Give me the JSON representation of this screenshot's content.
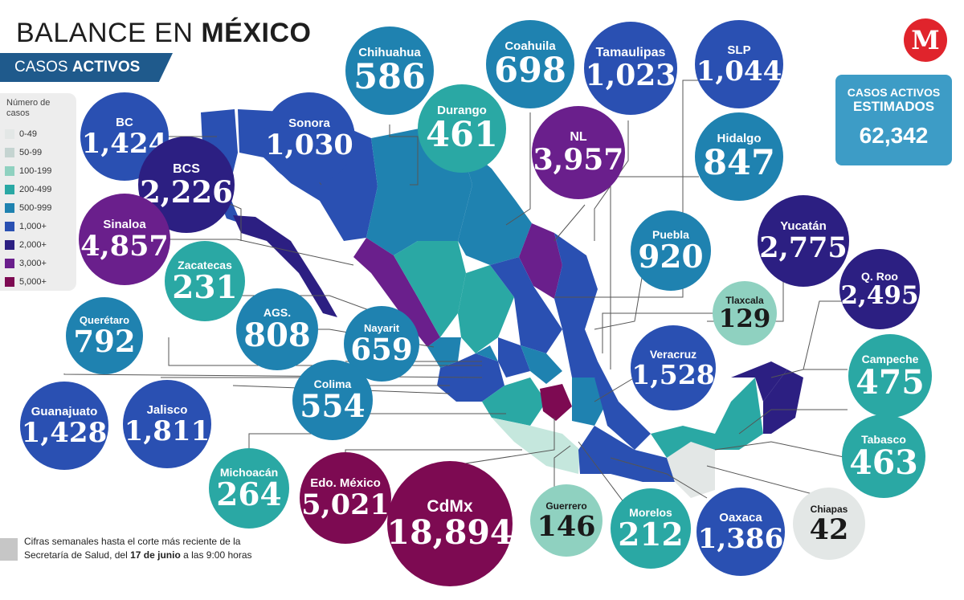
{
  "header": {
    "title_a": "BALANCE EN ",
    "title_b": "MÉXICO",
    "subtitle_a": "CASOS ",
    "subtitle_b": "ACTIVOS"
  },
  "legend": {
    "title": "Número de casos",
    "items": [
      {
        "label": "0-49",
        "color": "#e3e7e6"
      },
      {
        "label": "50-99",
        "color": "#c5d4d1"
      },
      {
        "label": "100-199",
        "color": "#8fd1c0"
      },
      {
        "label": "200-499",
        "color": "#2aa8a4"
      },
      {
        "label": "500-999",
        "color": "#1f82b0"
      },
      {
        "label": "1,000+",
        "color": "#2a50b2"
      },
      {
        "label": "2,000+",
        "color": "#2c1f82"
      },
      {
        "label": "3,000+",
        "color": "#6a1f8c"
      },
      {
        "label": "5,000+",
        "color": "#7d0a52"
      }
    ]
  },
  "total": {
    "line1": "CASOS ACTIVOS",
    "line2": "ESTIMADOS",
    "value": "62,342"
  },
  "logo": {
    "letter": "M",
    "color": "#e0242c"
  },
  "note": {
    "a": "Cifras semanales hasta el corte más reciente de la Secretaría de Salud, del ",
    "b": "17 de junio",
    "c": " a las 9:00 horas"
  },
  "states": [
    {
      "name": "BC",
      "value": "1,424",
      "color": "#2a50b2"
    },
    {
      "name": "Sonora",
      "value": "1,030",
      "color": "#2a50b2"
    },
    {
      "name": "Chihuahua",
      "value": "586",
      "color": "#1f82b0"
    },
    {
      "name": "Coahuila",
      "value": "698",
      "color": "#1f82b0"
    },
    {
      "name": "Tamaulipas",
      "value": "1,023",
      "color": "#2a50b2"
    },
    {
      "name": "SLP",
      "value": "1,044",
      "color": "#2a50b2"
    },
    {
      "name": "Durango",
      "value": "461",
      "color": "#2aa8a4"
    },
    {
      "name": "NL",
      "value": "3,957",
      "color": "#6a1f8c"
    },
    {
      "name": "BCS",
      "value": "2,226",
      "color": "#2c1f82"
    },
    {
      "name": "Hidalgo",
      "value": "847",
      "color": "#1f82b0"
    },
    {
      "name": "Sinaloa",
      "value": "4,857",
      "color": "#6a1f8c"
    },
    {
      "name": "Zacatecas",
      "value": "231",
      "color": "#2aa8a4"
    },
    {
      "name": "Puebla",
      "value": "920",
      "color": "#1f82b0"
    },
    {
      "name": "Yucatán",
      "value": "2,775",
      "color": "#2c1f82"
    },
    {
      "name": "Q. Roo",
      "value": "2,495",
      "color": "#2c1f82"
    },
    {
      "name": "Tlaxcala",
      "value": "129",
      "color": "#8fd1c0"
    },
    {
      "name": "AGS.",
      "value": "808",
      "color": "#1f82b0"
    },
    {
      "name": "Querétaro",
      "value": "792",
      "color": "#1f82b0"
    },
    {
      "name": "Nayarit",
      "value": "659",
      "color": "#1f82b0"
    },
    {
      "name": "Veracruz",
      "value": "1,528",
      "color": "#2a50b2"
    },
    {
      "name": "Campeche",
      "value": "475",
      "color": "#2aa8a4"
    },
    {
      "name": "Colima",
      "value": "554",
      "color": "#1f82b0"
    },
    {
      "name": "Guanajuato",
      "value": "1,428",
      "color": "#2a50b2"
    },
    {
      "name": "Jalisco",
      "value": "1,811",
      "color": "#2a50b2"
    },
    {
      "name": "Tabasco",
      "value": "463",
      "color": "#2aa8a4"
    },
    {
      "name": "Michoacán",
      "value": "264",
      "color": "#2aa8a4"
    },
    {
      "name": "Edo. México",
      "value": "5,021",
      "color": "#7d0a52"
    },
    {
      "name": "CdMx",
      "value": "18,894",
      "color": "#7d0a52"
    },
    {
      "name": "Guerrero",
      "value": "146",
      "color": "#8fd1c0"
    },
    {
      "name": "Morelos",
      "value": "212",
      "color": "#2aa8a4"
    },
    {
      "name": "Oaxaca",
      "value": "1,386",
      "color": "#2a50b2"
    },
    {
      "name": "Chiapas",
      "value": "42",
      "color": "#e3e7e6"
    }
  ]
}
